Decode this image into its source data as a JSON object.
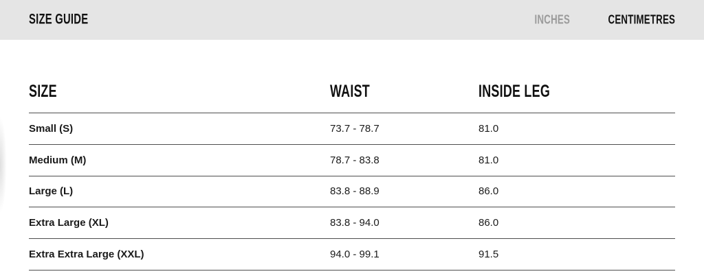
{
  "topbar": {
    "title": "SIZE GUIDE",
    "unit_inches": "INCHES",
    "unit_centimetres": "CENTIMETRES",
    "active_unit": "CENTIMETRES"
  },
  "table": {
    "columns": [
      "SIZE",
      "WAIST",
      "INSIDE LEG"
    ],
    "rows": [
      {
        "size": "Small (S)",
        "waist": "73.7 - 78.7",
        "inside_leg": "81.0"
      },
      {
        "size": "Medium (M)",
        "waist": "78.7 - 83.8",
        "inside_leg": "81.0"
      },
      {
        "size": "Large (L)",
        "waist": "83.8 - 88.9",
        "inside_leg": "86.0"
      },
      {
        "size": "Extra Large (XL)",
        "waist": "83.8 - 94.0",
        "inside_leg": "86.0"
      },
      {
        "size": "Extra Extra Large (XXL)",
        "waist": "94.0 - 99.1",
        "inside_leg": "91.5"
      }
    ]
  },
  "colors": {
    "topbar_bg": "#e5e5e5",
    "inactive_unit_text": "#9b9b9b",
    "active_text": "#111111",
    "table_line": "#4d4d4d"
  }
}
